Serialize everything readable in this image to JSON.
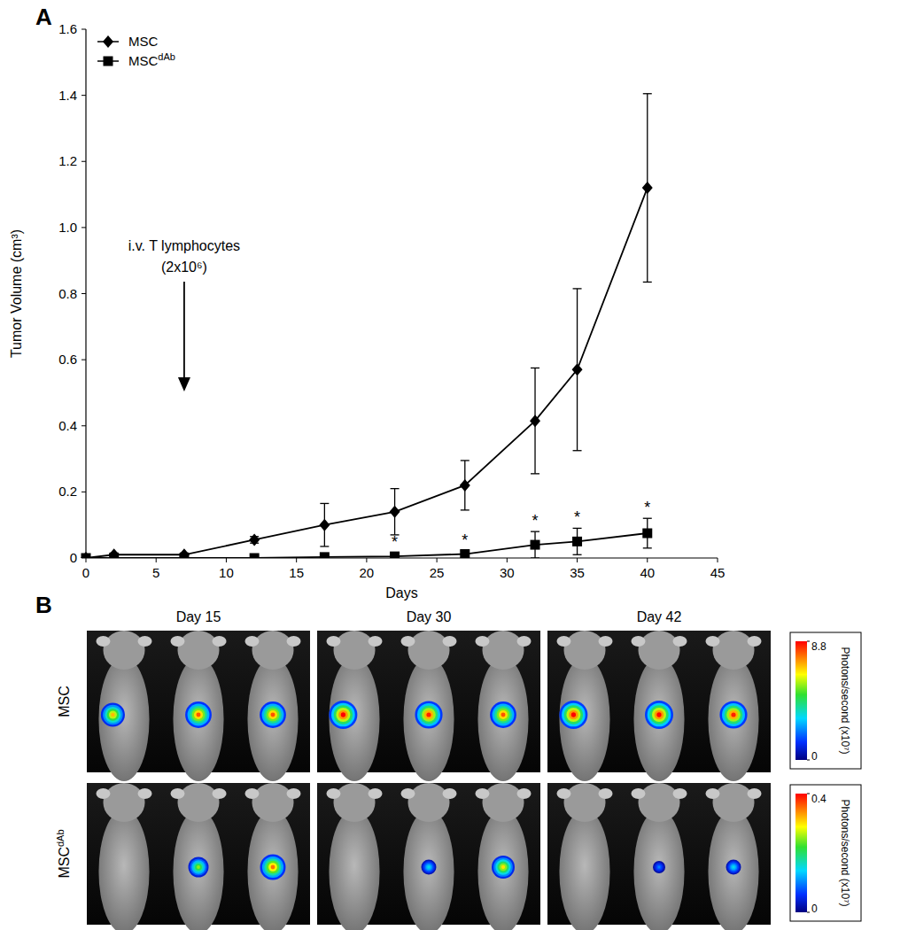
{
  "chart_data": {
    "type": "line",
    "panel_label": "A",
    "xlabel": "Days",
    "ylabel": "Tumor Volume (cm³)",
    "x": [
      0,
      2,
      7,
      12,
      17,
      22,
      27,
      32,
      35,
      40
    ],
    "series": [
      {
        "name": "MSC",
        "color": "#000000",
        "marker": "diamond",
        "values": [
          0,
          0.01,
          0.01,
          0.055,
          0.1,
          0.14,
          0.22,
          0.415,
          0.57,
          1.12
        ],
        "errors": [
          0,
          0.005,
          0.005,
          0.01,
          0.065,
          0.07,
          0.075,
          0.16,
          0.245,
          0.285
        ]
      },
      {
        "name": "MSCdAb",
        "color": "#000000",
        "marker": "square",
        "values": [
          0,
          0,
          0,
          0,
          0.003,
          0.005,
          0.012,
          0.04,
          0.05,
          0.075
        ],
        "errors": [
          0,
          0,
          0,
          0,
          0.005,
          0.01,
          0.01,
          0.04,
          0.04,
          0.045
        ]
      }
    ],
    "annotations": [
      {
        "x": 22,
        "text": "*"
      },
      {
        "x": 27,
        "text": "*"
      },
      {
        "x": 32,
        "text": "*"
      },
      {
        "x": 35,
        "text": "*"
      },
      {
        "x": 40,
        "text": "*"
      }
    ],
    "arrow_annotation": {
      "x": 7,
      "text": [
        "i.v. T lymphocytes",
        "(2x10⁶)"
      ]
    },
    "xlim": [
      0,
      45
    ],
    "xticks": [
      0,
      5,
      10,
      15,
      20,
      25,
      30,
      35,
      40,
      45
    ],
    "ylim": [
      0,
      1.6
    ],
    "yticks": [
      0,
      0.2,
      0.4,
      0.6,
      0.8,
      {
        "value": 1,
        "label": "1.0"
      },
      1.2,
      1.4,
      1.6
    ],
    "legend": "upper left"
  },
  "panel_b": {
    "panel_label": "B",
    "columns": [
      "Day 15",
      "Day 30",
      "Day 42"
    ],
    "rows": [
      {
        "label": "MSC",
        "signals": [
          [
            7,
            8,
            8
          ],
          [
            8.8,
            8.5,
            8
          ],
          [
            8.8,
            8.8,
            8.5
          ]
        ],
        "colorbar": {
          "range": [
            0,
            8.8
          ],
          "ticks": [
            0,
            8.8
          ],
          "label": "Photons/second (x10⁷)"
        }
      },
      {
        "label": "MSCdAb",
        "signals": [
          [
            0,
            0.25,
            0.35
          ],
          [
            0,
            0.15,
            0.3
          ],
          [
            0,
            0.1,
            0.15
          ]
        ],
        "colorbar": {
          "range": [
            0,
            0.4
          ],
          "ticks": [
            0,
            0.4
          ],
          "label": "Photons/second (x10⁷)"
        }
      }
    ]
  }
}
